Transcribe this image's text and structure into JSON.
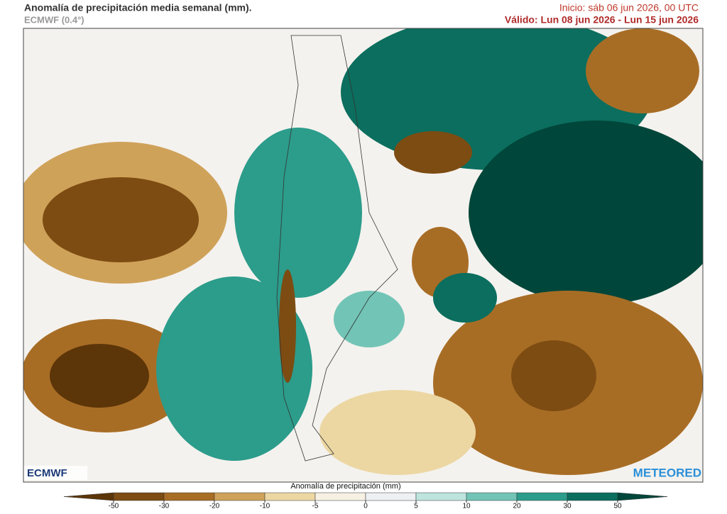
{
  "header": {
    "title": "Anomalía de precipitación media semanal (mm).",
    "subtitle": "ECMWF (0.4°)",
    "init": "Inicio:  sáb 06 jun 2026, 00 UTC",
    "valid": "Válido: Lun 08 jun 2026 - Lun 15 jun 2026"
  },
  "map": {
    "logo_left": "ECMWF",
    "logo_right": "METEORED"
  },
  "legend": {
    "title": "Anomalía de precipitación (mm)",
    "ticks": [
      -50,
      -30,
      -20,
      -10,
      -5,
      0,
      5,
      10,
      20,
      30,
      50
    ],
    "colors": [
      "#5c3508",
      "#7d4c12",
      "#a86d25",
      "#cfa25a",
      "#ecd7a3",
      "#f7f1e4",
      "#eef1f3",
      "#bde5de",
      "#72c4b6",
      "#2c9c8b",
      "#0b6e5e",
      "#00463a"
    ]
  }
}
